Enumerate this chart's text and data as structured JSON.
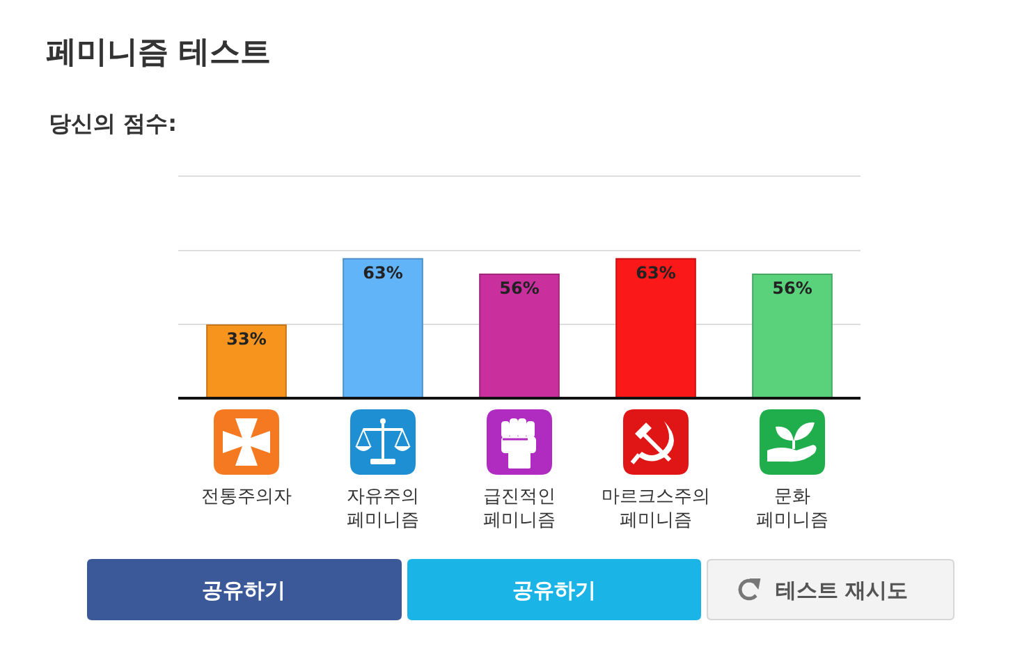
{
  "chart_data": {
    "type": "bar",
    "title": "페미니즘 테스트",
    "subtitle": "당신의 점수:",
    "categories": [
      "전통주의자",
      "자유주의\n페미니즘",
      "급진적인\n페미니즘",
      "마르크스주의\n페미니즘",
      "문화\n페미니즘"
    ],
    "values": [
      33,
      63,
      56,
      63,
      56
    ],
    "value_labels": [
      "33%",
      "63%",
      "56%",
      "63%",
      "56%"
    ],
    "colors": [
      "#f7941e",
      "#62b4f8",
      "#c9309e",
      "#fb1818",
      "#5ad27c"
    ],
    "ylim": [
      0,
      100
    ],
    "yticks": [
      {
        "value": 33.3,
        "label": null
      },
      {
        "value": 66.7,
        "label": null
      },
      {
        "value": 100,
        "label": null
      }
    ],
    "grid": "y",
    "tick_labels": "x",
    "annotations": [
      "공유하기",
      "공유하기",
      "테스트 재시도"
    ]
  }
}
